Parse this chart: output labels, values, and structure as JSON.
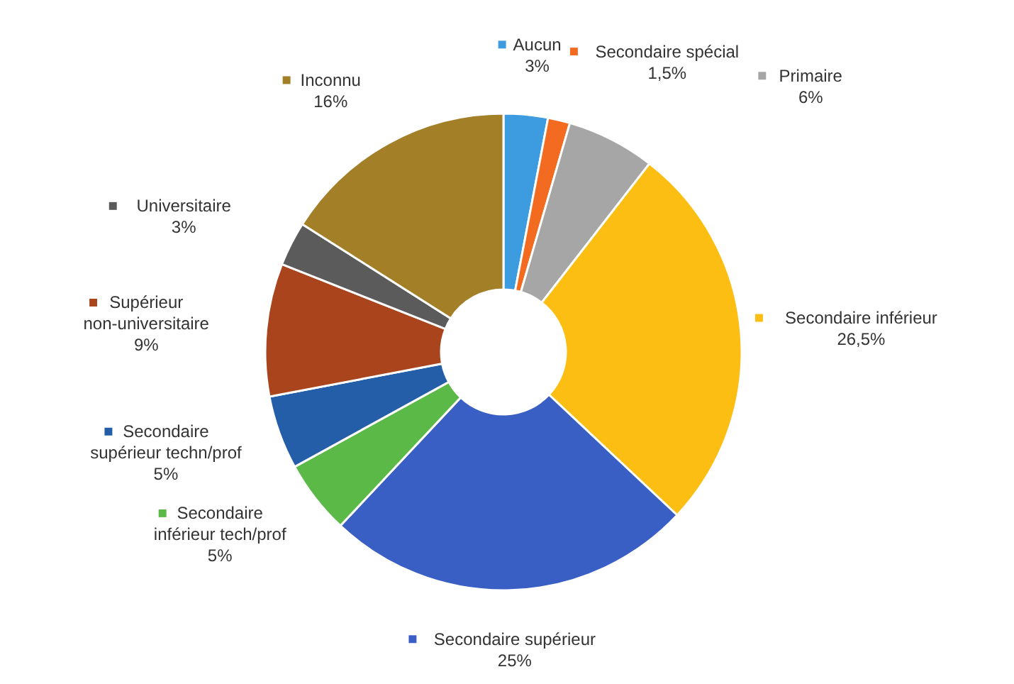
{
  "chart_data": {
    "type": "donut",
    "categories": [
      "Aucun",
      "Secondaire spécial",
      "Primaire",
      "Secondaire inférieur",
      "Secondaire supérieur",
      "Secondaire inférieur tech/prof",
      "Secondaire supérieur techn/prof",
      "Supérieur non-universitaire",
      "Universitaire",
      "Inconnu"
    ],
    "values": [
      3,
      1.5,
      6,
      26.5,
      25,
      5,
      5,
      9,
      3,
      16
    ],
    "value_labels": [
      "3%",
      "1,5%",
      "6%",
      "26,5%",
      "25%",
      "5%",
      "5%",
      "9%",
      "3%",
      "16%"
    ],
    "colors": [
      "#3d9be0",
      "#f26b21",
      "#a6a6a6",
      "#fcbe12",
      "#3a5fc4",
      "#5bb947",
      "#245da8",
      "#a9441d",
      "#5b5b5b",
      "#a37f27"
    ],
    "legend": "top"
  }
}
